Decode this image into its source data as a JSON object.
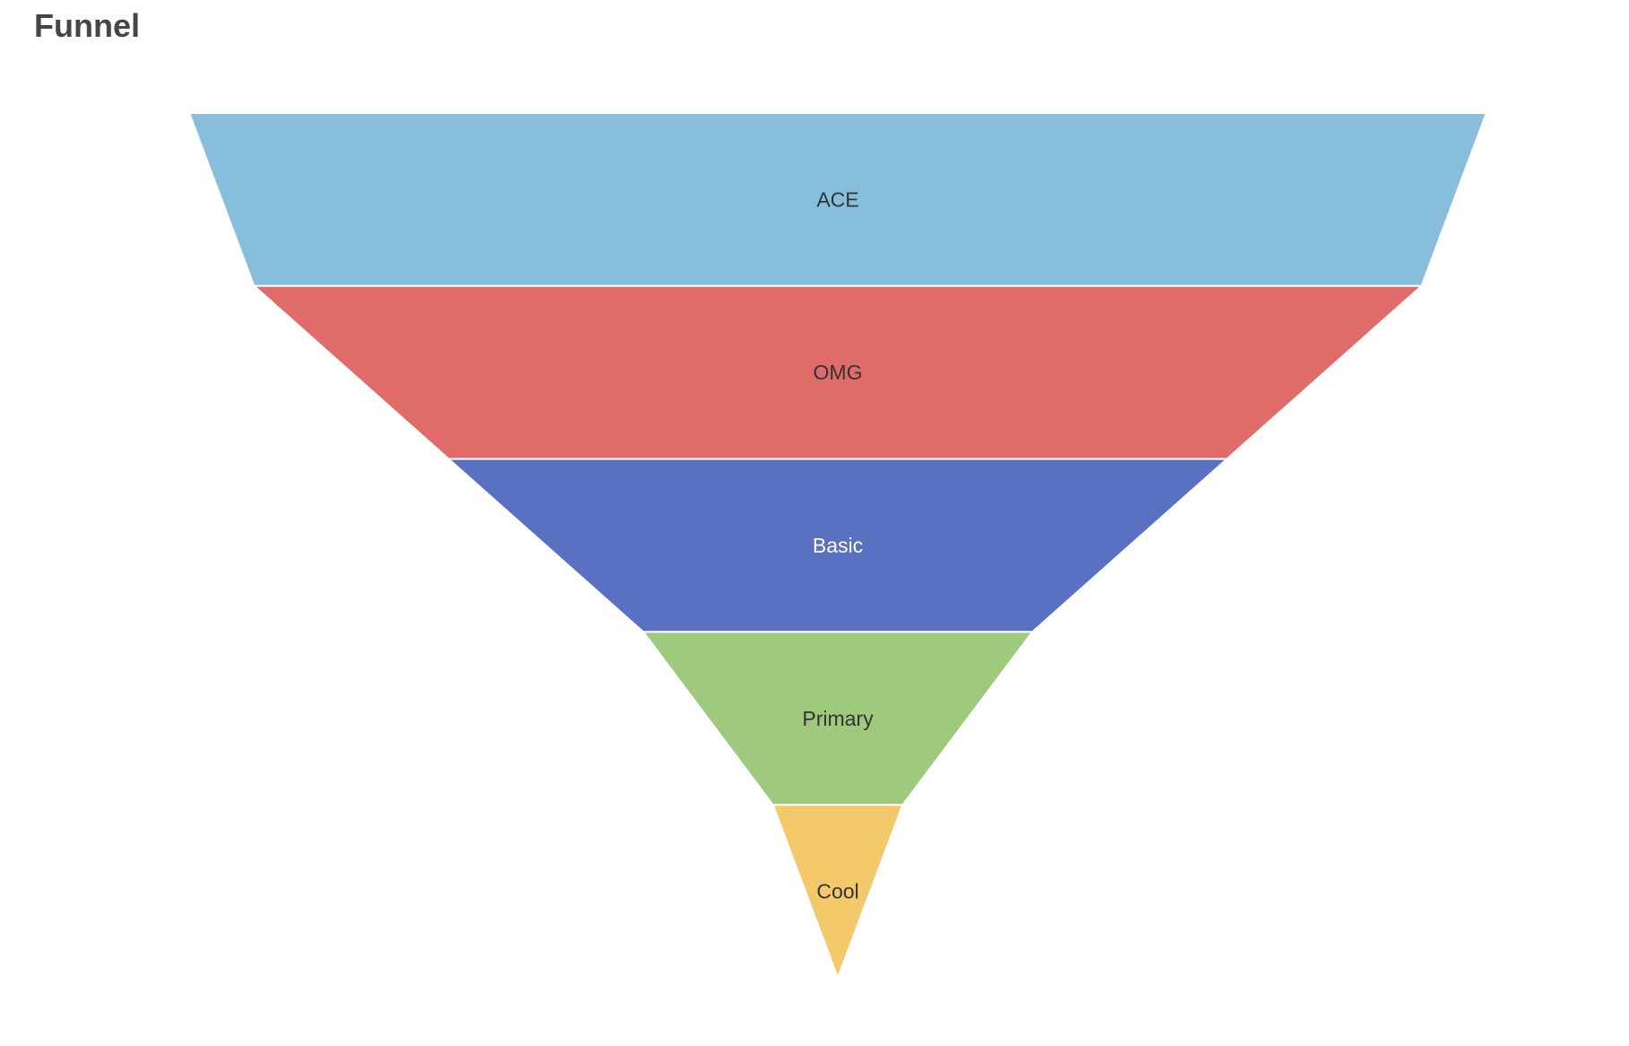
{
  "title": "Funnel",
  "chart_data": {
    "type": "funnel",
    "title": "Funnel",
    "categories": [
      "ACE",
      "OMG",
      "Basic",
      "Primary",
      "Cool"
    ],
    "values": [
      100,
      90,
      60,
      30,
      10
    ],
    "colors": [
      "#87bedc",
      "#e06c69",
      "#5a70c1",
      "#9fca7d",
      "#f4c96b"
    ],
    "label_colors": [
      "#333333",
      "#333333",
      "#ffffff",
      "#333333",
      "#333333"
    ],
    "min": 0,
    "max": 100,
    "sort": "descending",
    "legend": "none"
  }
}
